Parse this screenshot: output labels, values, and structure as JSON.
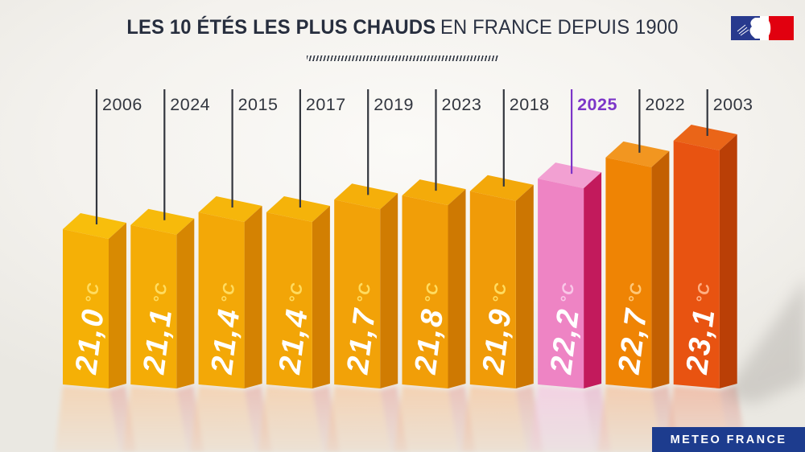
{
  "title": {
    "bold": "LES 10 ÉTÉS LES PLUS CHAUDS",
    "regular": "EN FRANCE DEPUIS 1900"
  },
  "branding": {
    "badge_label": "METEO FRANCE",
    "badge_bg": "#1D3C8E",
    "flag": {
      "blue": "#283A8E",
      "white": "#FFFFFF",
      "red": "#E1000F"
    }
  },
  "colors": {
    "background": "#F3F1ED",
    "title_text": "#272E3E",
    "year_text": "#32363F",
    "tick_line": "#33363E",
    "highlight": "#7C35C8",
    "value_text": "#FFFFFF",
    "cast_shadow": "#A5A19C"
  },
  "chart_data": {
    "type": "bar",
    "title": "LES 10 ÉTÉS LES PLUS CHAUDS EN FRANCE DEPUIS 1900",
    "unit": "°C",
    "orientation": "vertical-3d",
    "ylim": [
      21.0,
      23.1
    ],
    "grid": false,
    "legend": false,
    "highlight_category": "2025",
    "categories": [
      "2006",
      "2024",
      "2015",
      "2017",
      "2019",
      "2023",
      "2018",
      "2025",
      "2022",
      "2003"
    ],
    "values": [
      21.0,
      21.1,
      21.4,
      21.4,
      21.7,
      21.8,
      21.9,
      22.2,
      22.7,
      23.1
    ],
    "value_labels": [
      "21,0",
      "21,1",
      "21,4",
      "21,4",
      "21,7",
      "21,8",
      "21,9",
      "22,2",
      "22,7",
      "23,1"
    ],
    "bars": [
      {
        "year": "2006",
        "label": "21,0",
        "value": 21.0,
        "front": "#F5B006",
        "top": "#F8BE0C",
        "side": "#D88A02",
        "unit_color": "#FFDC60",
        "line_color": "#33363E",
        "year_color": "#32363F",
        "year_bold": false,
        "refl": "#F8CA9E",
        "refl_side": "#E59B90"
      },
      {
        "year": "2024",
        "label": "21,1",
        "value": 21.1,
        "front": "#F4AC06",
        "top": "#F7BA0B",
        "side": "#D68602",
        "unit_color": "#FFDC60",
        "line_color": "#33363E",
        "year_color": "#32363F",
        "year_bold": false,
        "refl": "#F8C89C",
        "refl_side": "#E59B90"
      },
      {
        "year": "2015",
        "label": "21,4",
        "value": 21.4,
        "front": "#F3A807",
        "top": "#F6B60B",
        "side": "#D48202",
        "unit_color": "#FFDC60",
        "line_color": "#33363E",
        "year_color": "#32363F",
        "year_bold": false,
        "refl": "#F8C79A",
        "refl_side": "#E59B90"
      },
      {
        "year": "2017",
        "label": "21,4",
        "value": 21.4,
        "front": "#F2A507",
        "top": "#F5B30A",
        "side": "#D27F02",
        "unit_color": "#FFDC60",
        "line_color": "#33363E",
        "year_color": "#32363F",
        "year_bold": false,
        "refl": "#F7C598",
        "refl_side": "#E59B90"
      },
      {
        "year": "2019",
        "label": "21,7",
        "value": 21.7,
        "front": "#F2A208",
        "top": "#F5AF0A",
        "side": "#D07C02",
        "unit_color": "#FFDC60",
        "line_color": "#33363E",
        "year_color": "#32363F",
        "year_bold": false,
        "refl": "#F7C396",
        "refl_side": "#E59B90"
      },
      {
        "year": "2023",
        "label": "21,8",
        "value": 21.8,
        "front": "#F19E08",
        "top": "#F4AB0A",
        "side": "#CE7902",
        "unit_color": "#FFDC60",
        "line_color": "#33363E",
        "year_color": "#32363F",
        "year_bold": false,
        "refl": "#F7C294",
        "refl_side": "#E59B90"
      },
      {
        "year": "2018",
        "label": "21,9",
        "value": 21.9,
        "front": "#F09B08",
        "top": "#F3A80A",
        "side": "#CC7602",
        "unit_color": "#FFDC60",
        "line_color": "#33363E",
        "year_color": "#32363F",
        "year_bold": false,
        "refl": "#F7C092",
        "refl_side": "#E59B90"
      },
      {
        "year": "2025",
        "label": "22,2",
        "value": 22.2,
        "front": "#EE84C4",
        "top": "#F2A0D2",
        "side": "#C21A5C",
        "unit_color": "#F9C8E8",
        "line_color": "#7C35C8",
        "year_color": "#7C35C8",
        "year_bold": true,
        "refl": "#F6C3E1",
        "refl_side": "#E8A2C8"
      },
      {
        "year": "2022",
        "label": "22,7",
        "value": 22.7,
        "front": "#EF8404",
        "top": "#F29620",
        "side": "#C36002",
        "unit_color": "#FFC878",
        "line_color": "#33363E",
        "year_color": "#32363F",
        "year_bold": false,
        "refl": "#F6BC92",
        "refl_side": "#E09488"
      },
      {
        "year": "2003",
        "label": "23,1",
        "value": 23.1,
        "front": "#E85311",
        "top": "#EA6518",
        "side": "#BA3F06",
        "unit_color": "#FFB084",
        "line_color": "#33363E",
        "year_color": "#32363F",
        "year_bold": false,
        "refl": "#F2A98C",
        "refl_side": "#DE8E80"
      }
    ]
  }
}
